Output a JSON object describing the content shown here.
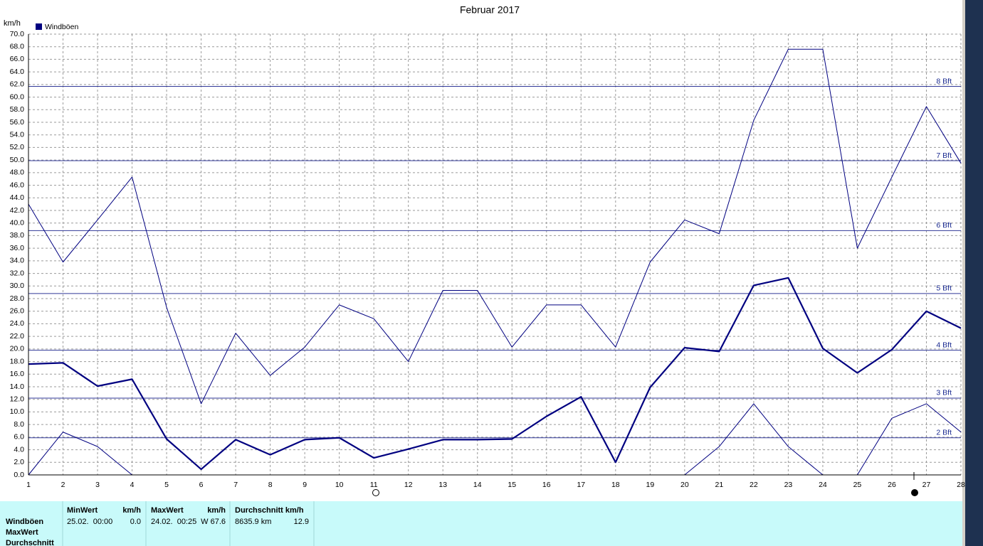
{
  "chart_data": {
    "type": "line",
    "title": "Februar 2017",
    "y_label": "km/h",
    "x": [
      1,
      2,
      3,
      4,
      5,
      6,
      7,
      8,
      9,
      10,
      11,
      12,
      13,
      14,
      15,
      16,
      17,
      18,
      19,
      20,
      21,
      22,
      23,
      24,
      25,
      26,
      27,
      28
    ],
    "xlim": [
      1,
      28
    ],
    "xticks": [
      1,
      2,
      3,
      4,
      5,
      6,
      7,
      8,
      9,
      10,
      11,
      12,
      13,
      14,
      15,
      16,
      17,
      18,
      19,
      20,
      21,
      22,
      23,
      24,
      25,
      26,
      27,
      28
    ],
    "ylim": [
      0,
      70
    ],
    "yticks": [
      {
        "value": 0,
        "label": "0.0"
      },
      {
        "value": 2,
        "label": "2.0"
      },
      {
        "value": 4,
        "label": "4.0"
      },
      {
        "value": 6,
        "label": "6.0"
      },
      {
        "value": 8,
        "label": "8.0"
      },
      {
        "value": 10,
        "label": "10.0"
      },
      {
        "value": 12,
        "label": "12.0"
      },
      {
        "value": 14,
        "label": "14.0"
      },
      {
        "value": 16,
        "label": "16.0"
      },
      {
        "value": 18,
        "label": "18.0"
      },
      {
        "value": 20,
        "label": "20.0"
      },
      {
        "value": 22,
        "label": "22.0"
      },
      {
        "value": 24,
        "label": "24.0"
      },
      {
        "value": 26,
        "label": "26.0"
      },
      {
        "value": 28,
        "label": "28.0"
      },
      {
        "value": 30,
        "label": "30.0"
      },
      {
        "value": 32,
        "label": "32.0"
      },
      {
        "value": 34,
        "label": "34.0"
      },
      {
        "value": 36,
        "label": "36.0"
      },
      {
        "value": 38,
        "label": "38.0"
      },
      {
        "value": 40,
        "label": "40.0"
      },
      {
        "value": 42,
        "label": "42.0"
      },
      {
        "value": 44,
        "label": "44.0"
      },
      {
        "value": 46,
        "label": "46.0"
      },
      {
        "value": 48,
        "label": "48.0"
      },
      {
        "value": 50,
        "label": "50.0"
      },
      {
        "value": 52,
        "label": "52.0"
      },
      {
        "value": 54,
        "label": "54.0"
      },
      {
        "value": 56,
        "label": "56.0"
      },
      {
        "value": 58,
        "label": "58.0"
      },
      {
        "value": 60,
        "label": "60.0"
      },
      {
        "value": 62,
        "label": "62.0"
      },
      {
        "value": 64,
        "label": "64.0"
      },
      {
        "value": 66,
        "label": "66.0"
      },
      {
        "value": 68,
        "label": "68.0"
      },
      {
        "value": 70,
        "label": "70.0"
      }
    ],
    "grid": true,
    "reference_lines": [
      {
        "value": 5.9,
        "label": "2 Bft"
      },
      {
        "value": 12.2,
        "label": "3 Bft"
      },
      {
        "value": 19.8,
        "label": "4 Bft"
      },
      {
        "value": 28.8,
        "label": "5 Bft"
      },
      {
        "value": 38.8,
        "label": "6 Bft"
      },
      {
        "value": 49.9,
        "label": "7 Bft"
      },
      {
        "value": 61.7,
        "label": "8 Bft"
      }
    ],
    "reference_color": "#303898",
    "series": [
      {
        "name": "Windböen",
        "color": "#000080",
        "values": [
          17.6,
          17.8,
          14.1,
          15.2,
          5.7,
          0.9,
          5.6,
          3.2,
          5.6,
          5.9,
          2.7,
          4.1,
          5.6,
          5.6,
          5.7,
          9.3,
          12.4,
          2.0,
          13.9,
          20.2,
          19.6,
          30.1,
          31.3,
          20.1,
          16.2,
          19.9,
          26.0,
          23.3
        ]
      },
      {
        "color": "#000080",
        "values": [
          43.0,
          33.8,
          40.5,
          47.3,
          26.6,
          11.3,
          22.5,
          15.8,
          20.3,
          27.0,
          24.8,
          18.0,
          29.3,
          29.3,
          20.3,
          27.0,
          27.0,
          20.3,
          33.8,
          40.5,
          38.3,
          56.3,
          67.6,
          67.6,
          36.0,
          47.3,
          58.5,
          49.5
        ]
      },
      {
        "color": "#000080",
        "values": [
          0.0,
          6.8,
          4.5,
          0.0,
          0,
          0,
          0,
          0,
          0,
          0,
          0,
          0,
          0,
          0,
          0,
          0,
          0,
          0,
          0,
          0.0,
          4.5,
          11.3,
          4.5,
          0.0,
          0.0,
          9.0,
          11.3,
          6.8
        ]
      }
    ]
  },
  "summary": {
    "row_labels": [
      "Windböen",
      "MaxWert",
      "Durchschnitt"
    ],
    "groups": [
      {
        "header": "MinWert",
        "unit": "km/h",
        "time": "25.02.  00:00",
        "value": "0.0"
      },
      {
        "header": "MaxWert",
        "unit": "km/h",
        "time": "24.02.  00:25",
        "value": "W 67.6"
      },
      {
        "header": "Durchschnitt km/h",
        "time": "8635.9 km",
        "value": "12.9"
      }
    ]
  }
}
